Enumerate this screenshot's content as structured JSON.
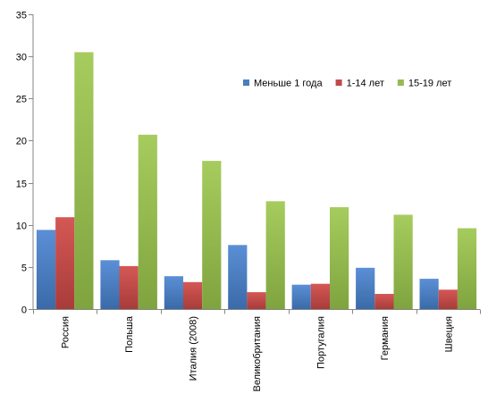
{
  "chart_data": {
    "type": "bar",
    "categories": [
      "Россия",
      "Польша",
      "Италия (2008)",
      "Великобритания",
      "Португалия",
      "Германия",
      "Швеция"
    ],
    "series": [
      {
        "name": "Меньше 1 года",
        "color": "#4a7ebb",
        "values": [
          9.4,
          5.8,
          3.9,
          7.6,
          2.9,
          4.9,
          3.6
        ]
      },
      {
        "name": "1-14 лет",
        "color": "#be4b48",
        "values": [
          10.9,
          5.1,
          3.2,
          2.0,
          3.0,
          1.8,
          2.3
        ]
      },
      {
        "name": "15-19 лет",
        "color": "#98b954",
        "values": [
          30.5,
          20.7,
          17.6,
          12.8,
          12.1,
          11.2,
          9.6
        ]
      }
    ],
    "ylim": [
      0,
      35
    ],
    "yticks": [
      0,
      5,
      10,
      15,
      20,
      25,
      30,
      35
    ],
    "grid": false,
    "legend": "top-right"
  }
}
